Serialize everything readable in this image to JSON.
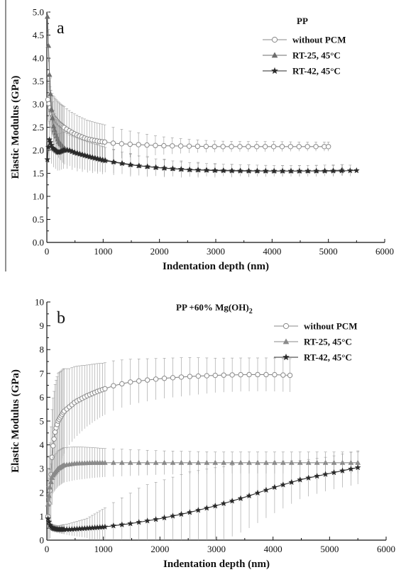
{
  "chart_data": [
    {
      "type": "line",
      "panel_label": "a",
      "xlabel": "Indentation depth (nm)",
      "ylabel": "Elastic Modulus (GPa)",
      "xlim": [
        0,
        6000
      ],
      "ylim": [
        0,
        5
      ],
      "xticks": [
        "0",
        "1000",
        "2000",
        "3000",
        "4000",
        "5000",
        "6000"
      ],
      "yticks": [
        "0.0",
        "0.5",
        "1.0",
        "1.5",
        "2.0",
        "2.5",
        "3.0",
        "3.5",
        "4.0",
        "4.5",
        "5.0"
      ],
      "legend_title": "PP",
      "legend_position": "top-right",
      "grid": false,
      "series": [
        {
          "name": "without PCM",
          "marker": "circle-open",
          "color": "#8a8a8a",
          "points": [
            [
              20,
              3.1
            ],
            [
              50,
              2.95
            ],
            [
              100,
              2.75
            ],
            [
              200,
              2.6
            ],
            [
              300,
              2.5
            ],
            [
              400,
              2.42
            ],
            [
              500,
              2.35
            ],
            [
              700,
              2.25
            ],
            [
              900,
              2.2
            ],
            [
              1200,
              2.15
            ],
            [
              1500,
              2.13
            ],
            [
              2000,
              2.1
            ],
            [
              2500,
              2.09
            ],
            [
              3000,
              2.08
            ],
            [
              3500,
              2.08
            ],
            [
              4000,
              2.08
            ],
            [
              4500,
              2.08
            ],
            [
              5000,
              2.08
            ]
          ],
          "error": [
            [
              100,
              0.45
            ],
            [
              300,
              0.45
            ],
            [
              600,
              0.42
            ],
            [
              1000,
              0.38
            ],
            [
              1500,
              0.28
            ],
            [
              2000,
              0.2
            ],
            [
              2500,
              0.15
            ],
            [
              3000,
              0.12
            ],
            [
              3500,
              0.11
            ],
            [
              4000,
              0.11
            ],
            [
              4500,
              0.1
            ],
            [
              5000,
              0.1
            ]
          ]
        },
        {
          "name": "RT-25, 45°C",
          "marker": "triangle",
          "color": "#6e6e6e",
          "points": [
            [
              10,
              4.9
            ],
            [
              30,
              4.2
            ],
            [
              50,
              3.5
            ],
            [
              80,
              2.9
            ],
            [
              120,
              2.5
            ],
            [
              200,
              2.2
            ],
            [
              300,
              2.05
            ],
            [
              500,
              1.95
            ],
            [
              800,
              1.85
            ],
            [
              1200,
              1.75
            ],
            [
              1600,
              1.67
            ],
            [
              2000,
              1.62
            ],
            [
              2500,
              1.58
            ],
            [
              3000,
              1.57
            ],
            [
              3500,
              1.56
            ],
            [
              4000,
              1.55
            ],
            [
              4500,
              1.55
            ],
            [
              5000,
              1.56
            ],
            [
              5250,
              1.57
            ]
          ],
          "error": [
            [
              300,
              0.35
            ],
            [
              800,
              0.3
            ],
            [
              1200,
              0.25
            ],
            [
              2000,
              0.18
            ],
            [
              3000,
              0.13
            ],
            [
              4000,
              0.12
            ],
            [
              5250,
              0.12
            ]
          ]
        },
        {
          "name": "RT-42, 45°C",
          "marker": "star",
          "color": "#2a2a2a",
          "points": [
            [
              10,
              1.8
            ],
            [
              40,
              2.25
            ],
            [
              100,
              2.05
            ],
            [
              200,
              1.95
            ],
            [
              300,
              2.0
            ],
            [
              400,
              2.0
            ],
            [
              500,
              1.95
            ],
            [
              700,
              1.88
            ],
            [
              1000,
              1.78
            ],
            [
              1500,
              1.68
            ],
            [
              2000,
              1.62
            ],
            [
              2500,
              1.58
            ],
            [
              3000,
              1.56
            ],
            [
              3500,
              1.55
            ],
            [
              4000,
              1.55
            ],
            [
              4500,
              1.55
            ],
            [
              5000,
              1.55
            ],
            [
              5500,
              1.56
            ]
          ],
          "error": [
            [
              500,
              0.4
            ],
            [
              1000,
              0.3
            ],
            [
              2000,
              0.2
            ],
            [
              3000,
              0.15
            ],
            [
              4000,
              0.12
            ],
            [
              5000,
              0.12
            ]
          ]
        }
      ]
    },
    {
      "type": "line",
      "panel_label": "b",
      "xlabel": "Indentation depth (nm)",
      "ylabel": "Elastic Modulus (GPa)",
      "xlim": [
        0,
        6000
      ],
      "ylim": [
        0,
        10
      ],
      "xticks": [
        "0",
        "1000",
        "2000",
        "3000",
        "4000",
        "5000",
        "6000"
      ],
      "yticks": [
        "0",
        "1",
        "2",
        "3",
        "4",
        "5",
        "6",
        "7",
        "8",
        "9",
        "10"
      ],
      "legend_title": "PP +60% Mg(OH)",
      "legend_title_sub": "2",
      "legend_position": "top-right",
      "grid": false,
      "series": [
        {
          "name": "without PCM",
          "marker": "circle-open",
          "color": "#8a8a8a",
          "points": [
            [
              20,
              1.0
            ],
            [
              60,
              2.2
            ],
            [
              100,
              3.8
            ],
            [
              150,
              4.6
            ],
            [
              200,
              5.0
            ],
            [
              300,
              5.4
            ],
            [
              400,
              5.6
            ],
            [
              500,
              5.8
            ],
            [
              700,
              6.05
            ],
            [
              900,
              6.25
            ],
            [
              1200,
              6.5
            ],
            [
              1500,
              6.65
            ],
            [
              2000,
              6.78
            ],
            [
              2500,
              6.87
            ],
            [
              3000,
              6.92
            ],
            [
              3500,
              6.95
            ],
            [
              4000,
              6.95
            ],
            [
              4300,
              6.92
            ]
          ],
          "error": [
            [
              200,
              2.0
            ],
            [
              400,
              1.6
            ],
            [
              700,
              1.3
            ],
            [
              1000,
              1.1
            ],
            [
              1500,
              0.95
            ],
            [
              2000,
              0.85
            ],
            [
              2500,
              0.8
            ],
            [
              3000,
              0.72
            ],
            [
              3500,
              0.7
            ],
            [
              4000,
              0.7
            ],
            [
              4300,
              0.7
            ]
          ]
        },
        {
          "name": "RT-25, 45°C",
          "marker": "triangle",
          "color": "#8a8a8a",
          "points": [
            [
              20,
              1.5
            ],
            [
              60,
              2.3
            ],
            [
              100,
              2.7
            ],
            [
              200,
              3.0
            ],
            [
              300,
              3.15
            ],
            [
              500,
              3.22
            ],
            [
              800,
              3.25
            ],
            [
              1200,
              3.25
            ],
            [
              2000,
              3.25
            ],
            [
              3000,
              3.25
            ],
            [
              4000,
              3.25
            ],
            [
              5000,
              3.25
            ],
            [
              5500,
              3.25
            ]
          ],
          "error": [
            [
              200,
              0.75
            ],
            [
              500,
              0.7
            ],
            [
              1000,
              0.6
            ],
            [
              2000,
              0.5
            ],
            [
              3000,
              0.45
            ],
            [
              4000,
              0.45
            ],
            [
              5000,
              0.45
            ],
            [
              5500,
              0.45
            ]
          ]
        },
        {
          "name": "RT-42, 45°C",
          "marker": "star",
          "color": "#2a2a2a",
          "points": [
            [
              20,
              0.9
            ],
            [
              60,
              0.6
            ],
            [
              100,
              0.5
            ],
            [
              200,
              0.45
            ],
            [
              400,
              0.45
            ],
            [
              700,
              0.5
            ],
            [
              1000,
              0.55
            ],
            [
              1500,
              0.7
            ],
            [
              2000,
              0.9
            ],
            [
              2500,
              1.15
            ],
            [
              3000,
              1.45
            ],
            [
              3500,
              1.8
            ],
            [
              4000,
              2.2
            ],
            [
              4500,
              2.55
            ],
            [
              5000,
              2.8
            ],
            [
              5500,
              3.05
            ]
          ],
          "error": [
            [
              200,
              0.15
            ],
            [
              700,
              0.4
            ],
            [
              1200,
              1.0
            ],
            [
              1700,
              1.5
            ],
            [
              2500,
              1.7
            ],
            [
              3000,
              1.6
            ],
            [
              3500,
              1.4
            ],
            [
              4000,
              1.1
            ],
            [
              4500,
              0.8
            ],
            [
              5000,
              0.7
            ],
            [
              5500,
              0.7
            ]
          ]
        }
      ]
    }
  ]
}
